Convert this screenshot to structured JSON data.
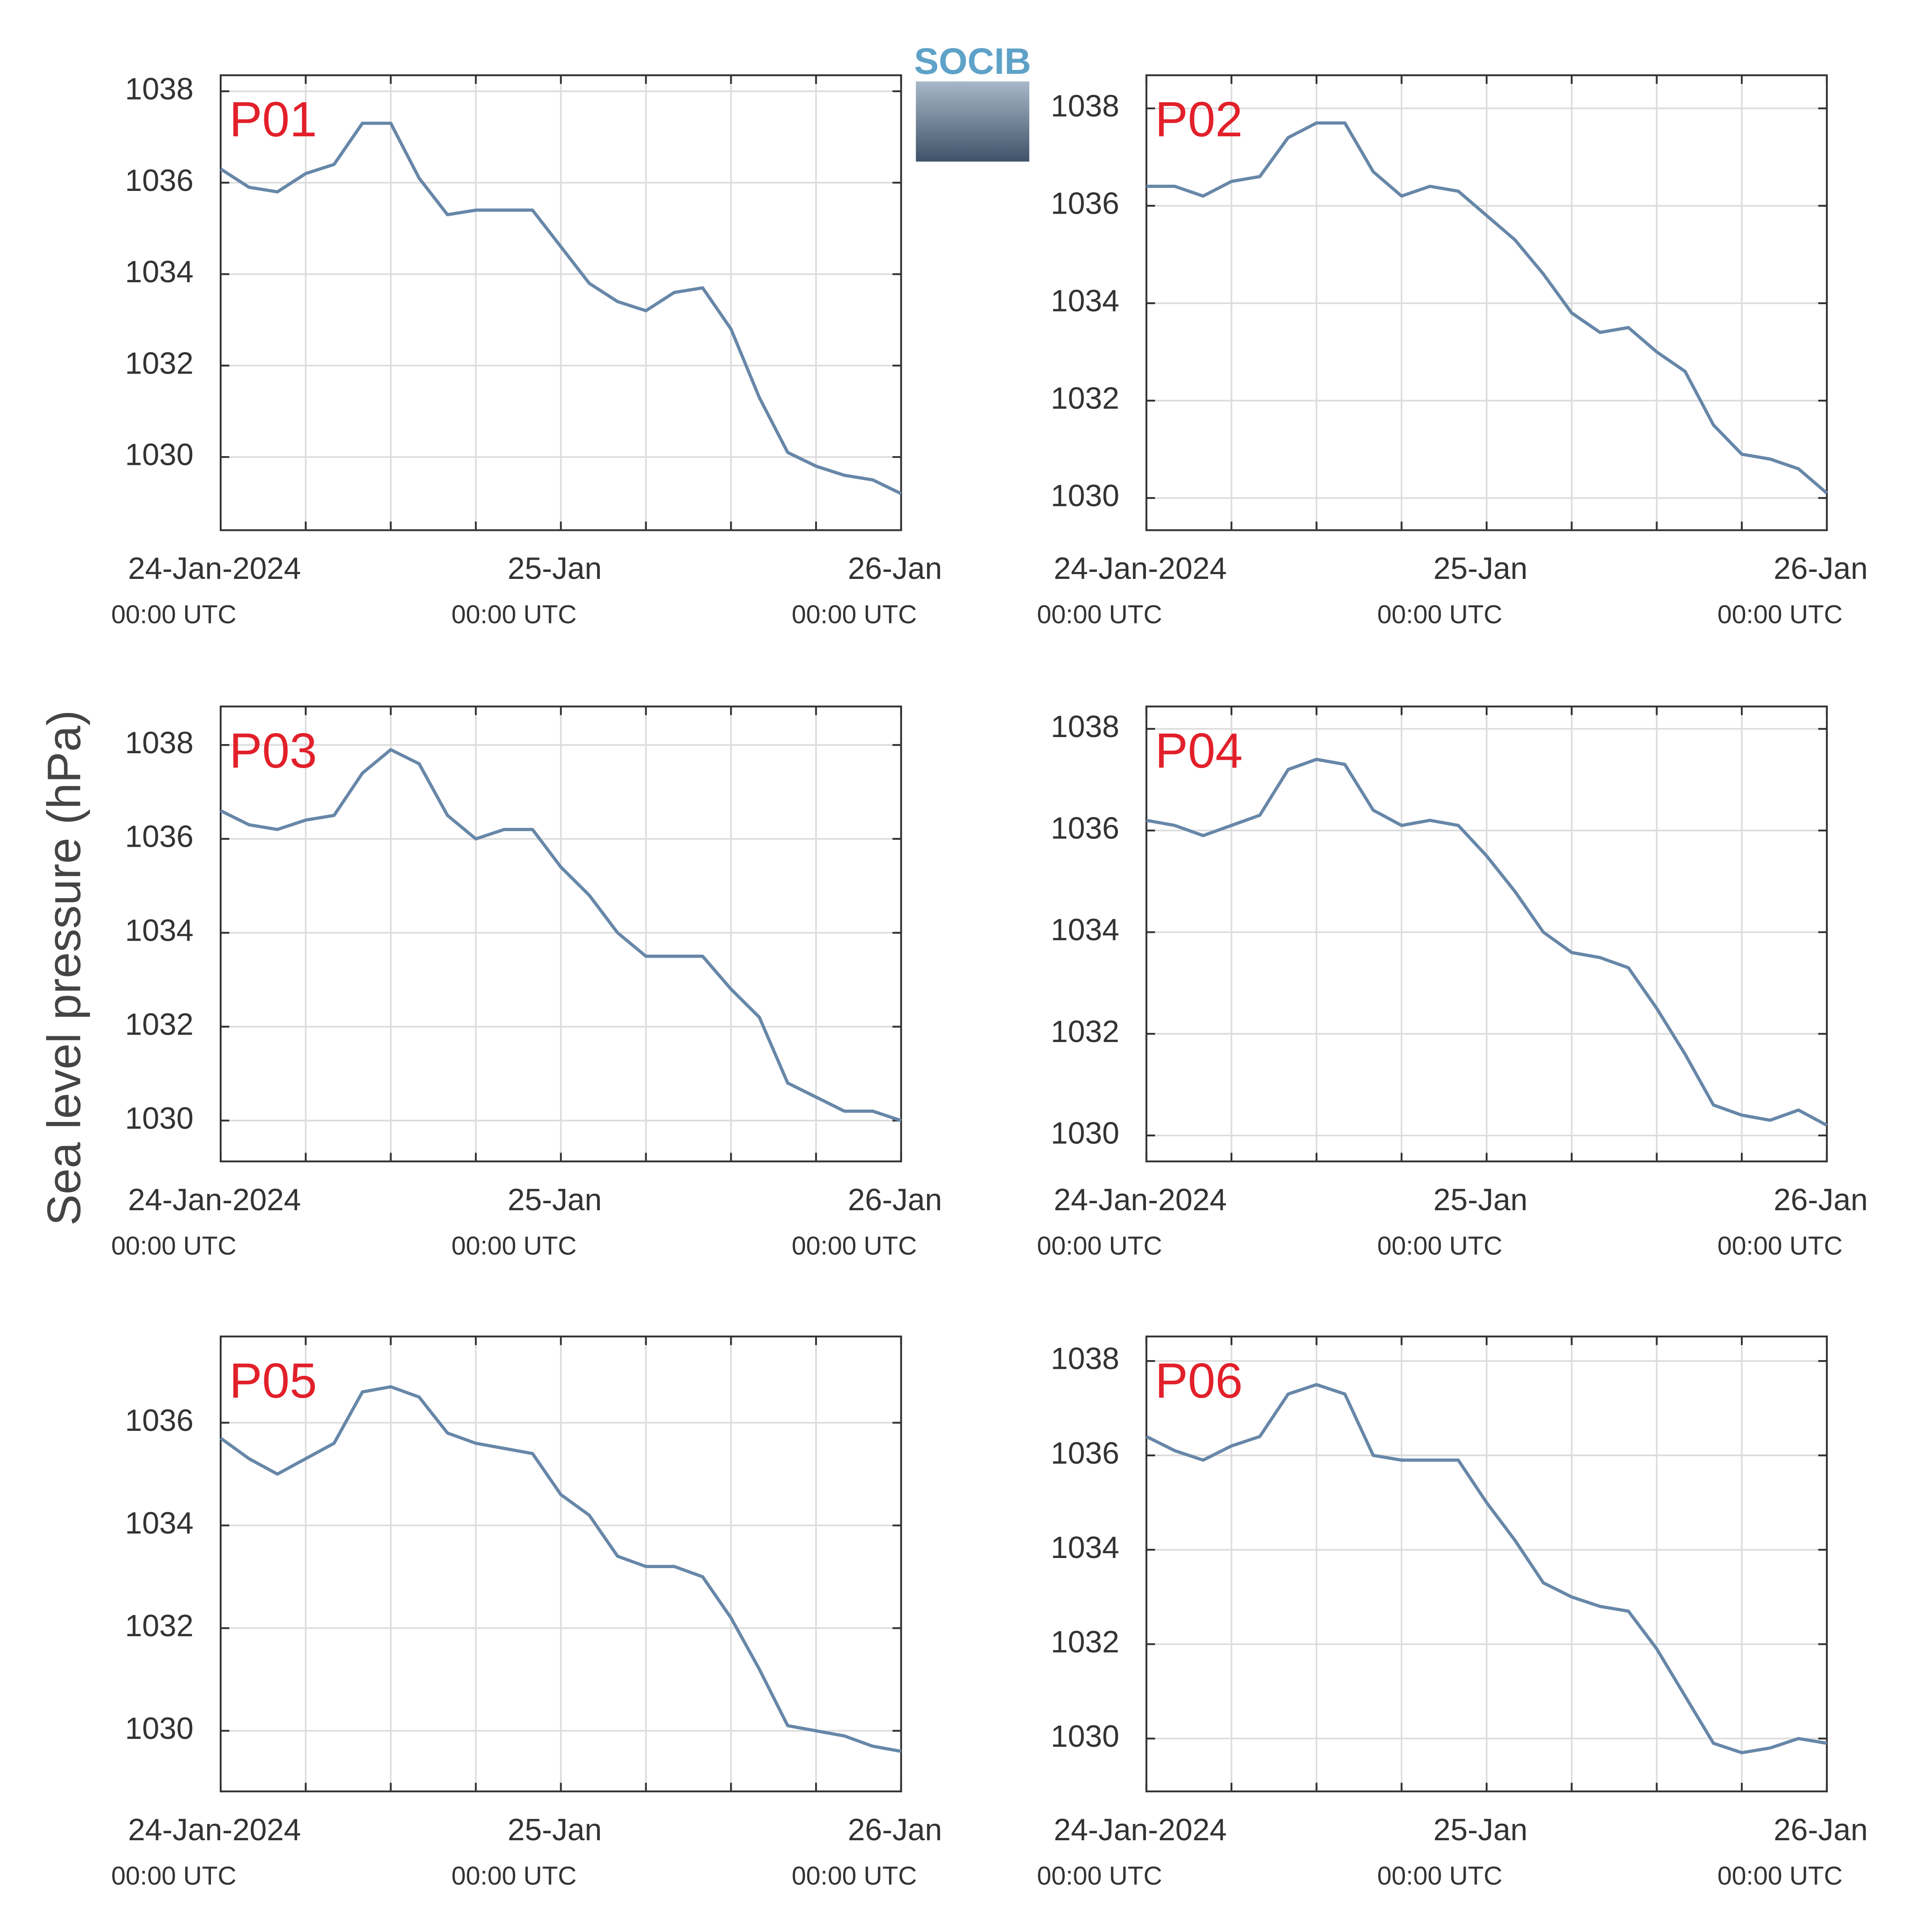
{
  "ylabel": "Sea level pressure (hPa)",
  "logo": "SOCIB",
  "chart_data": [
    {
      "type": "line",
      "label": "P01",
      "color": "#6787a8",
      "xlim": [
        0,
        48
      ],
      "ylim": [
        1028.4,
        1038.35
      ],
      "xticks": [
        {
          "value": 0,
          "label": "24-Jan-2024",
          "sublabel": "00:00 UTC"
        },
        {
          "value": 6
        },
        {
          "value": 12
        },
        {
          "value": 18
        },
        {
          "value": 24,
          "label": "25-Jan",
          "sublabel": "00:00 UTC"
        },
        {
          "value": 30
        },
        {
          "value": 36
        },
        {
          "value": 42
        },
        {
          "value": 48,
          "label": "26-Jan",
          "sublabel": "00:00 UTC"
        }
      ],
      "yticks": [
        1030,
        1032,
        1034,
        1036,
        1038
      ],
      "x": [
        0,
        2,
        4,
        6,
        8,
        10,
        12,
        14,
        16,
        18,
        20,
        22,
        24,
        26,
        28,
        30,
        32,
        34,
        36,
        38,
        40,
        42,
        44,
        46,
        48
      ],
      "values": [
        1036.3,
        1035.9,
        1035.8,
        1036.2,
        1036.4,
        1037.3,
        1037.3,
        1036.1,
        1035.3,
        1035.4,
        1035.4,
        1035.4,
        1034.6,
        1033.8,
        1033.4,
        1033.2,
        1033.6,
        1033.7,
        1032.8,
        1031.3,
        1030.1,
        1029.8,
        1029.6,
        1029.5,
        1029.2
      ]
    },
    {
      "type": "line",
      "label": "P02",
      "color": "#6787a8",
      "xlim": [
        0,
        48
      ],
      "ylim": [
        1029.34,
        1038.68
      ],
      "xticks": [
        {
          "value": 0,
          "label": "24-Jan-2024",
          "sublabel": "00:00 UTC"
        },
        {
          "value": 6
        },
        {
          "value": 12
        },
        {
          "value": 18
        },
        {
          "value": 24,
          "label": "25-Jan",
          "sublabel": "00:00 UTC"
        },
        {
          "value": 30
        },
        {
          "value": 36
        },
        {
          "value": 42
        },
        {
          "value": 48,
          "label": "26-Jan",
          "sublabel": "00:00 UTC"
        }
      ],
      "yticks": [
        1030,
        1032,
        1034,
        1036,
        1038
      ],
      "x": [
        0,
        2,
        4,
        6,
        8,
        10,
        12,
        14,
        16,
        18,
        20,
        22,
        24,
        26,
        28,
        30,
        32,
        34,
        36,
        38,
        40,
        42,
        44,
        46,
        48
      ],
      "values": [
        1036.4,
        1036.4,
        1036.2,
        1036.5,
        1036.6,
        1037.4,
        1037.7,
        1037.7,
        1036.7,
        1036.2,
        1036.4,
        1036.3,
        1035.8,
        1035.3,
        1034.6,
        1033.8,
        1033.4,
        1033.5,
        1033.0,
        1032.6,
        1031.5,
        1030.9,
        1030.8,
        1030.6,
        1030.1
      ]
    },
    {
      "type": "line",
      "label": "P03",
      "color": "#6787a8",
      "xlim": [
        0,
        48
      ],
      "ylim": [
        1029.13,
        1038.82
      ],
      "xticks": [
        {
          "value": 0,
          "label": "24-Jan-2024",
          "sublabel": "00:00 UTC"
        },
        {
          "value": 6
        },
        {
          "value": 12
        },
        {
          "value": 18
        },
        {
          "value": 24,
          "label": "25-Jan",
          "sublabel": "00:00 UTC"
        },
        {
          "value": 30
        },
        {
          "value": 36
        },
        {
          "value": 42
        },
        {
          "value": 48,
          "label": "26-Jan",
          "sublabel": "00:00 UTC"
        }
      ],
      "yticks": [
        1030,
        1032,
        1034,
        1036,
        1038
      ],
      "x": [
        0,
        2,
        4,
        6,
        8,
        10,
        12,
        14,
        16,
        18,
        20,
        22,
        24,
        26,
        28,
        30,
        32,
        34,
        36,
        38,
        40,
        42,
        44,
        46,
        48
      ],
      "values": [
        1036.6,
        1036.3,
        1036.2,
        1036.4,
        1036.5,
        1037.4,
        1037.9,
        1037.6,
        1036.5,
        1036.0,
        1036.2,
        1036.2,
        1035.4,
        1034.8,
        1034.0,
        1033.5,
        1033.5,
        1033.5,
        1032.8,
        1032.2,
        1030.8,
        1030.5,
        1030.2,
        1030.2,
        1030.0
      ]
    },
    {
      "type": "line",
      "label": "P04",
      "color": "#6787a8",
      "xlim": [
        0,
        48
      ],
      "ylim": [
        1029.49,
        1038.44
      ],
      "xticks": [
        {
          "value": 0,
          "label": "24-Jan-2024",
          "sublabel": "00:00 UTC"
        },
        {
          "value": 6
        },
        {
          "value": 12
        },
        {
          "value": 18
        },
        {
          "value": 24,
          "label": "25-Jan",
          "sublabel": "00:00 UTC"
        },
        {
          "value": 30
        },
        {
          "value": 36
        },
        {
          "value": 42
        },
        {
          "value": 48,
          "label": "26-Jan",
          "sublabel": "00:00 UTC"
        }
      ],
      "yticks": [
        1030,
        1032,
        1034,
        1036,
        1038
      ],
      "x": [
        0,
        2,
        4,
        6,
        8,
        10,
        12,
        14,
        16,
        18,
        20,
        22,
        24,
        26,
        28,
        30,
        32,
        34,
        36,
        38,
        40,
        42,
        44,
        46,
        48
      ],
      "values": [
        1036.2,
        1036.1,
        1035.9,
        1036.1,
        1036.3,
        1037.2,
        1037.4,
        1037.3,
        1036.4,
        1036.1,
        1036.2,
        1036.1,
        1035.5,
        1034.8,
        1034.0,
        1033.6,
        1033.5,
        1033.3,
        1032.5,
        1031.6,
        1030.6,
        1030.4,
        1030.3,
        1030.5,
        1030.2
      ]
    },
    {
      "type": "line",
      "label": "P05",
      "color": "#6787a8",
      "xlim": [
        0,
        48
      ],
      "ylim": [
        1028.82,
        1037.68
      ],
      "xticks": [
        {
          "value": 0,
          "label": "24-Jan-2024",
          "sublabel": "00:00 UTC"
        },
        {
          "value": 6
        },
        {
          "value": 12
        },
        {
          "value": 18
        },
        {
          "value": 24,
          "label": "25-Jan",
          "sublabel": "00:00 UTC"
        },
        {
          "value": 30
        },
        {
          "value": 36
        },
        {
          "value": 42
        },
        {
          "value": 48,
          "label": "26-Jan",
          "sublabel": "00:00 UTC"
        }
      ],
      "yticks": [
        1030,
        1032,
        1034,
        1036
      ],
      "x": [
        0,
        2,
        4,
        6,
        8,
        10,
        12,
        14,
        16,
        18,
        20,
        22,
        24,
        26,
        28,
        30,
        32,
        34,
        36,
        38,
        40,
        42,
        44,
        46,
        48
      ],
      "values": [
        1035.7,
        1035.3,
        1035.0,
        1035.3,
        1035.6,
        1036.6,
        1036.7,
        1036.5,
        1035.8,
        1035.6,
        1035.5,
        1035.4,
        1034.6,
        1034.2,
        1033.4,
        1033.2,
        1033.2,
        1033.0,
        1032.2,
        1031.2,
        1030.1,
        1030.0,
        1029.9,
        1029.7,
        1029.6
      ]
    },
    {
      "type": "line",
      "label": "P06",
      "color": "#6787a8",
      "xlim": [
        0,
        48
      ],
      "ylim": [
        1028.88,
        1038.52
      ],
      "xticks": [
        {
          "value": 0,
          "label": "24-Jan-2024",
          "sublabel": "00:00 UTC"
        },
        {
          "value": 6
        },
        {
          "value": 12
        },
        {
          "value": 18
        },
        {
          "value": 24,
          "label": "25-Jan",
          "sublabel": "00:00 UTC"
        },
        {
          "value": 30
        },
        {
          "value": 36
        },
        {
          "value": 42
        },
        {
          "value": 48,
          "label": "26-Jan",
          "sublabel": "00:00 UTC"
        }
      ],
      "yticks": [
        1030,
        1032,
        1034,
        1036,
        1038
      ],
      "x": [
        0,
        2,
        4,
        6,
        8,
        10,
        12,
        14,
        16,
        18,
        20,
        22,
        24,
        26,
        28,
        30,
        32,
        34,
        36,
        38,
        40,
        42,
        44,
        46,
        48
      ],
      "values": [
        1036.4,
        1036.1,
        1035.9,
        1036.2,
        1036.4,
        1037.3,
        1037.5,
        1037.3,
        1036.0,
        1035.9,
        1035.9,
        1035.9,
        1035.0,
        1034.2,
        1033.3,
        1033.0,
        1032.8,
        1032.7,
        1031.9,
        1030.9,
        1029.9,
        1029.7,
        1029.8,
        1030.0,
        1029.9
      ]
    }
  ]
}
